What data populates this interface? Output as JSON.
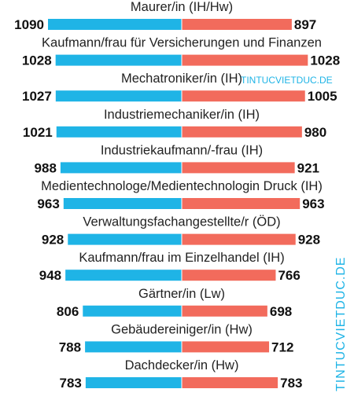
{
  "chart_data": {
    "type": "bar",
    "orientation": "horizontal-diverging",
    "title": "",
    "xlabel": "",
    "ylabel": "",
    "xlim": [
      0,
      1090
    ],
    "grid": false,
    "legend": "none",
    "categories": [
      "Maurer/in (IH/Hw)",
      "Kaufmann/frau für Versicherungen und Finanzen",
      "Mechatroniker/in (IH)",
      "Industriemechaniker/in (IH)",
      "Industriekaufmann/-frau (IH)",
      "Medientechnologe/Medientechnologin Druck (IH)",
      "Verwaltungsfachangestellte/r (ÖD)",
      "Kaufmann/frau im Einzelhandel (IH)",
      "Gärtner/in (Lw)",
      "Gebäudereiniger/in (Hw)",
      "Dachdecker/in (Hw)"
    ],
    "series": [
      {
        "side": "left",
        "color": "#1fb4e6",
        "values": [
          1090,
          1028,
          1027,
          1021,
          988,
          963,
          928,
          948,
          806,
          788,
          783
        ]
      },
      {
        "side": "right",
        "color": "#f26b5c",
        "values": [
          897,
          1028,
          1005,
          980,
          921,
          963,
          928,
          766,
          698,
          712,
          783
        ]
      }
    ]
  },
  "watermarks": {
    "inline_text": "TINTUCVIETDUC.DE",
    "vertical_text": "TINTUCVIETDUC.DE",
    "color": "#1fb4e6"
  }
}
